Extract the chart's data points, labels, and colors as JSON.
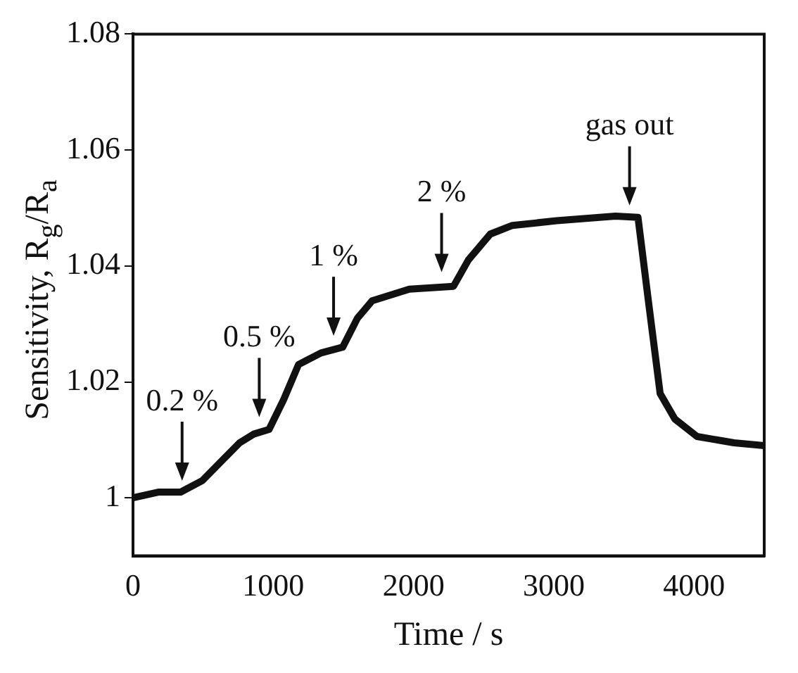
{
  "chart_data": {
    "type": "line",
    "xlabel": "Time / s",
    "ylabel": "Sensitivity, R$_{g}$/R$_{a}$",
    "x": [
      0,
      180,
      340,
      495,
      760,
      860,
      970,
      1075,
      1180,
      1340,
      1495,
      1600,
      1705,
      1970,
      2285,
      2390,
      2547,
      2705,
      3020,
      3440,
      3600,
      3674,
      3758,
      3863,
      4020,
      4284,
      4500
    ],
    "series": [
      {
        "color": "#111111",
        "values": [
          1.0,
          1.001,
          1.001,
          1.003,
          1.0095,
          1.011,
          1.0118,
          1.017,
          1.023,
          1.025,
          1.026,
          1.031,
          1.034,
          1.036,
          1.0365,
          1.041,
          1.0455,
          1.047,
          1.0478,
          1.0486,
          1.0484,
          1.034,
          1.018,
          1.0136,
          1.0106,
          1.0095,
          1.009
        ]
      }
    ],
    "xlim": [
      0,
      4500
    ],
    "xticks": [
      0,
      1000,
      2000,
      3000,
      4000
    ],
    "ylim": [
      0.99,
      1.08
    ],
    "yticks": [
      1,
      1.02,
      1.04,
      1.06,
      1.08
    ],
    "grid": false,
    "legend": false,
    "marker": "none",
    "line_style": "solid",
    "annotations": [
      {
        "text": "0.2 %",
        "x": 350,
        "y": 1.001
      },
      {
        "text": "0.5 %",
        "x": 900,
        "y": 1.012
      },
      {
        "text": "1 %",
        "x": 1430,
        "y": 1.026
      },
      {
        "text": "2 %",
        "x": 2200,
        "y": 1.037
      },
      {
        "text": "gas out",
        "x": 3540,
        "y": 1.0485
      }
    ]
  }
}
